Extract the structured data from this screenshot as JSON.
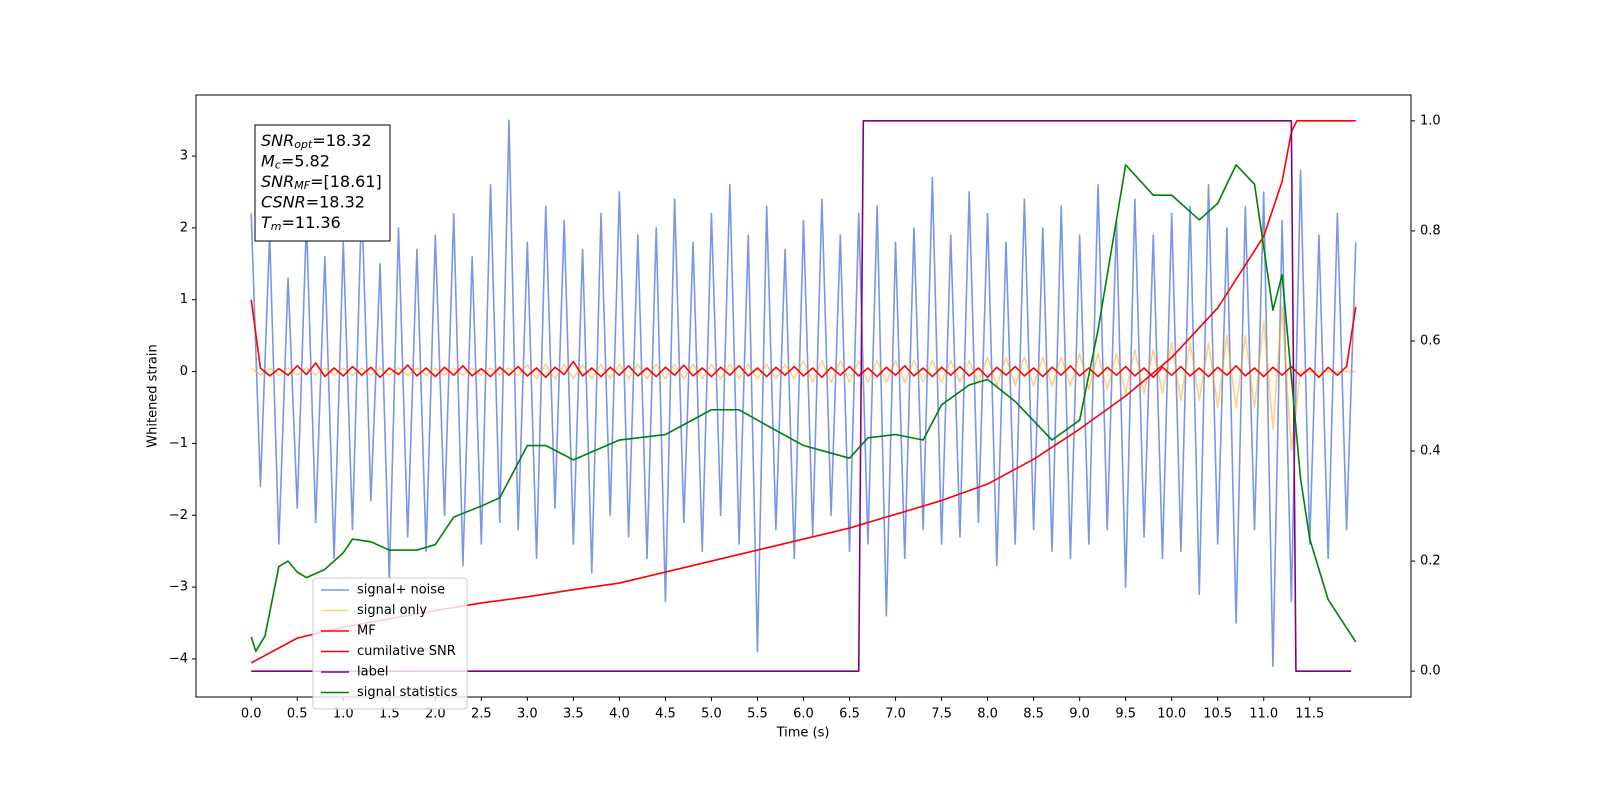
{
  "chart_data": {
    "type": "line",
    "xlabel": "Time (s)",
    "ylabel": "Whitened strain",
    "xlim": [
      -0.6,
      12.6
    ],
    "ylim": [
      -4.53,
      3.85
    ],
    "y2lim": [
      -0.047,
      1.047
    ],
    "xticks": [
      {
        "value": 0,
        "label": "0.0"
      },
      {
        "value": 0.5,
        "label": "0.5"
      },
      {
        "value": 1,
        "label": "1.0"
      },
      {
        "value": 1.5,
        "label": "1.5"
      },
      {
        "value": 2,
        "label": "2.0"
      },
      {
        "value": 2.5,
        "label": "2.5"
      },
      {
        "value": 3,
        "label": "3.0"
      },
      {
        "value": 3.5,
        "label": "3.5"
      },
      {
        "value": 4,
        "label": "4.0"
      },
      {
        "value": 4.5,
        "label": "4.5"
      },
      {
        "value": 5,
        "label": "5.0"
      },
      {
        "value": 5.5,
        "label": "5.5"
      },
      {
        "value": 6,
        "label": "6.0"
      },
      {
        "value": 6.5,
        "label": "6.5"
      },
      {
        "value": 7,
        "label": "7.0"
      },
      {
        "value": 7.5,
        "label": "7.5"
      },
      {
        "value": 8,
        "label": "8.0"
      },
      {
        "value": 8.5,
        "label": "8.5"
      },
      {
        "value": 9,
        "label": "9.0"
      },
      {
        "value": 9.5,
        "label": "9.5"
      },
      {
        "value": 10,
        "label": "10.0"
      },
      {
        "value": 10.5,
        "label": "10.5"
      },
      {
        "value": 11,
        "label": "11.0"
      },
      {
        "value": 11.5,
        "label": "11.5"
      }
    ],
    "yticks": [
      {
        "value": -4,
        "label": "−4"
      },
      {
        "value": -3,
        "label": "−3"
      },
      {
        "value": -2,
        "label": "−2"
      },
      {
        "value": -1,
        "label": "−1"
      },
      0,
      1,
      2,
      3
    ],
    "y2ticks": [
      {
        "value": 0,
        "label": "0.0"
      },
      {
        "value": 0.2,
        "label": "0.2"
      },
      {
        "value": 0.4,
        "label": "0.4"
      },
      {
        "value": 0.6,
        "label": "0.6"
      },
      {
        "value": 0.8,
        "label": "0.8"
      },
      {
        "value": 1,
        "label": "1.0"
      }
    ],
    "grid": false,
    "legend": "lower left",
    "annotation": [
      {
        "main": "SNR",
        "sub": "opt",
        "rest": "=18.32"
      },
      {
        "main": "M",
        "sub": "c",
        "rest": "=5.82"
      },
      {
        "main": "SNR",
        "sub": "MF",
        "rest": "=[18.61]"
      },
      {
        "main": "CSNR",
        "sub": null,
        "rest": "=18.32"
      },
      {
        "main": "T",
        "sub": "m",
        "rest": "=11.36"
      }
    ],
    "series": [
      {
        "name": "signal+ noise",
        "color": "#7b96e8",
        "axis": "y",
        "x": [
          0,
          0.1,
          0.2,
          0.3,
          0.4,
          0.5,
          0.6,
          0.7,
          0.8,
          0.9,
          1,
          1.1,
          1.2,
          1.3,
          1.4,
          1.5,
          1.6,
          1.7,
          1.8,
          1.9,
          2,
          2.1,
          2.2,
          2.3,
          2.4,
          2.5,
          2.6,
          2.7,
          2.8,
          2.9,
          3,
          3.1,
          3.2,
          3.3,
          3.4,
          3.5,
          3.6,
          3.7,
          3.8,
          3.9,
          4,
          4.1,
          4.2,
          4.3,
          4.4,
          4.5,
          4.6,
          4.7,
          4.8,
          4.9,
          5,
          5.1,
          5.2,
          5.3,
          5.4,
          5.5,
          5.6,
          5.7,
          5.8,
          5.9,
          6,
          6.1,
          6.2,
          6.3,
          6.4,
          6.5,
          6.6,
          6.7,
          6.8,
          6.9,
          7,
          7.1,
          7.2,
          7.3,
          7.4,
          7.5,
          7.6,
          7.7,
          7.8,
          7.9,
          8,
          8.1,
          8.2,
          8.3,
          8.4,
          8.5,
          8.6,
          8.7,
          8.8,
          8.9,
          9,
          9.1,
          9.2,
          9.3,
          9.4,
          9.5,
          9.6,
          9.7,
          9.8,
          9.9,
          10,
          10.1,
          10.2,
          10.3,
          10.4,
          10.5,
          10.6,
          10.7,
          10.8,
          10.9,
          11,
          11.1,
          11.2,
          11.3,
          11.4,
          11.5,
          11.6,
          11.7,
          11.8,
          11.9,
          12
        ],
        "values": [
          2.2,
          -1.6,
          1.9,
          -2.4,
          1.3,
          -1.9,
          2.1,
          -2.1,
          1.6,
          -2.6,
          1.8,
          -2.2,
          2.4,
          -1.8,
          1.5,
          -2.9,
          2.0,
          -2.3,
          1.7,
          -2.5,
          1.9,
          -2.0,
          2.2,
          -2.7,
          1.6,
          -2.4,
          2.6,
          -2.1,
          3.5,
          -2.2,
          1.8,
          -2.6,
          2.3,
          -1.9,
          2.1,
          -2.4,
          1.7,
          -2.8,
          2.2,
          -2.0,
          2.5,
          -2.3,
          1.9,
          -2.6,
          2.0,
          -3.2,
          2.4,
          -2.1,
          1.8,
          -2.5,
          2.2,
          -2.0,
          2.6,
          -2.4,
          1.9,
          -3.9,
          2.3,
          -2.2,
          1.7,
          -2.6,
          2.1,
          -2.3,
          2.4,
          -2.0,
          1.9,
          -2.5,
          2.2,
          -2.4,
          2.3,
          -3.4,
          1.8,
          -2.6,
          2.0,
          -2.2,
          2.7,
          -2.4,
          1.9,
          -2.3,
          2.5,
          -2.1,
          2.2,
          -2.7,
          1.8,
          -2.4,
          2.4,
          -2.2,
          2.0,
          -2.5,
          2.3,
          -2.6,
          1.9,
          -2.4,
          2.6,
          -2.2,
          2.1,
          -3.0,
          2.4,
          -2.3,
          1.9,
          -2.6,
          2.2,
          -2.5,
          2.3,
          -3.1,
          2.6,
          -2.4,
          2.0,
          -3.5,
          2.3,
          -2.2,
          2.5,
          -4.1,
          2.1,
          -3.2,
          2.8,
          -2.4,
          1.9,
          -2.6,
          2.2,
          -2.2,
          1.8
        ]
      },
      {
        "name": "signal only",
        "color": "#ffa500",
        "opacity": 0.5,
        "axis": "y",
        "x": [
          0,
          0.1,
          0.2,
          0.3,
          0.4,
          0.5,
          0.6,
          0.7,
          0.8,
          0.9,
          1,
          1.1,
          1.2,
          1.3,
          1.4,
          1.5,
          1.6,
          1.7,
          1.8,
          1.9,
          2,
          2.1,
          2.2,
          2.3,
          2.4,
          2.5,
          2.6,
          2.7,
          2.8,
          2.9,
          3,
          3.1,
          3.2,
          3.3,
          3.4,
          3.5,
          3.6,
          3.7,
          3.8,
          3.9,
          4,
          4.1,
          4.2,
          4.3,
          4.4,
          4.5,
          4.6,
          4.7,
          4.8,
          4.9,
          5,
          5.1,
          5.2,
          5.3,
          5.4,
          5.5,
          5.6,
          5.7,
          5.8,
          5.9,
          6,
          6.1,
          6.2,
          6.3,
          6.4,
          6.5,
          6.6,
          6.7,
          6.8,
          6.9,
          7,
          7.1,
          7.2,
          7.3,
          7.4,
          7.5,
          7.6,
          7.7,
          7.8,
          7.9,
          8,
          8.1,
          8.2,
          8.3,
          8.4,
          8.5,
          8.6,
          8.7,
          8.8,
          8.9,
          9,
          9.1,
          9.2,
          9.3,
          9.4,
          9.5,
          9.6,
          9.7,
          9.8,
          9.9,
          10,
          10.1,
          10.2,
          10.3,
          10.4,
          10.5,
          10.6,
          10.7,
          10.8,
          10.9,
          11,
          11.1,
          11.2,
          11.3,
          11.4,
          11.5,
          11.6,
          11.7,
          11.8,
          11.9,
          12
        ],
        "values": [
          0.05,
          -0.05,
          0.05,
          -0.05,
          0.05,
          -0.05,
          0.05,
          -0.05,
          0.05,
          -0.05,
          0.05,
          -0.05,
          0.05,
          -0.05,
          0.05,
          -0.05,
          0.05,
          -0.05,
          0.05,
          -0.05,
          0.05,
          -0.05,
          0.05,
          -0.05,
          0.05,
          -0.05,
          0.05,
          -0.05,
          0.05,
          -0.05,
          0.1,
          -0.1,
          0.1,
          -0.1,
          0.1,
          -0.1,
          0.1,
          -0.1,
          0.1,
          -0.1,
          0.1,
          -0.1,
          0.1,
          -0.1,
          0.1,
          -0.1,
          0.1,
          -0.1,
          0.1,
          -0.1,
          0.1,
          -0.1,
          0.1,
          -0.1,
          0.1,
          -0.1,
          0.1,
          -0.1,
          0.1,
          -0.1,
          0.15,
          -0.15,
          0.15,
          -0.15,
          0.15,
          -0.15,
          0.15,
          -0.15,
          0.15,
          -0.15,
          0.15,
          -0.15,
          0.15,
          -0.15,
          0.15,
          -0.15,
          0.15,
          -0.15,
          0.15,
          -0.15,
          0.2,
          -0.2,
          0.2,
          -0.2,
          0.2,
          -0.2,
          0.2,
          -0.2,
          0.2,
          -0.2,
          0.25,
          -0.25,
          0.25,
          -0.25,
          0.25,
          -0.3,
          0.3,
          -0.3,
          0.3,
          -0.3,
          0.4,
          -0.4,
          0.4,
          -0.4,
          0.4,
          -0.5,
          0.5,
          -0.5,
          0.5,
          -0.5,
          0.7,
          -0.8,
          0.9,
          -1.1,
          0,
          0,
          0,
          0,
          0,
          0,
          0
        ]
      },
      {
        "name": "MF",
        "color": "#ff0000",
        "axis": "y",
        "x": [
          0,
          0.1,
          0.2,
          0.3,
          0.4,
          0.5,
          0.6,
          0.7,
          0.8,
          0.9,
          1,
          1.1,
          1.2,
          1.3,
          1.4,
          1.5,
          1.6,
          1.7,
          1.8,
          1.9,
          2,
          2.1,
          2.2,
          2.3,
          2.4,
          2.5,
          2.6,
          2.7,
          2.8,
          2.9,
          3,
          3.1,
          3.2,
          3.3,
          3.4,
          3.5,
          3.6,
          3.7,
          3.8,
          3.9,
          4,
          4.1,
          4.2,
          4.3,
          4.4,
          4.5,
          4.6,
          4.7,
          4.8,
          4.9,
          5,
          5.1,
          5.2,
          5.3,
          5.4,
          5.5,
          5.6,
          5.7,
          5.8,
          5.9,
          6,
          6.1,
          6.2,
          6.3,
          6.4,
          6.5,
          6.6,
          6.7,
          6.8,
          6.9,
          7,
          7.1,
          7.2,
          7.3,
          7.4,
          7.5,
          7.6,
          7.7,
          7.8,
          7.9,
          8,
          8.1,
          8.2,
          8.3,
          8.4,
          8.5,
          8.6,
          8.7,
          8.8,
          8.9,
          9,
          9.1,
          9.2,
          9.3,
          9.4,
          9.5,
          9.6,
          9.7,
          9.8,
          9.9,
          10,
          10.1,
          10.2,
          10.3,
          10.4,
          10.5,
          10.6,
          10.7,
          10.8,
          10.9,
          11,
          11.1,
          11.2,
          11.3,
          11.4,
          11.5,
          11.6,
          11.7,
          11.8,
          11.9,
          12
        ],
        "values": [
          1.0,
          0.05,
          -0.06,
          0.04,
          -0.05,
          0.08,
          -0.04,
          0.12,
          -0.07,
          0.05,
          -0.06,
          0.07,
          -0.05,
          0.06,
          -0.08,
          0.05,
          -0.04,
          0.09,
          -0.06,
          0.05,
          -0.07,
          0.06,
          -0.05,
          0.08,
          -0.06,
          0.04,
          -0.07,
          0.06,
          -0.05,
          0.07,
          -0.06,
          0.05,
          -0.08,
          0.06,
          -0.04,
          0.14,
          -0.06,
          0.05,
          -0.07,
          0.06,
          -0.05,
          0.08,
          -0.06,
          0.05,
          -0.07,
          0.06,
          -0.05,
          0.09,
          -0.06,
          0.05,
          -0.07,
          0.06,
          -0.05,
          0.08,
          -0.06,
          0.05,
          -0.07,
          0.06,
          -0.05,
          0.07,
          -0.06,
          0.05,
          -0.08,
          0.06,
          -0.05,
          0.07,
          -0.06,
          0.05,
          -0.07,
          0.06,
          -0.05,
          0.08,
          -0.06,
          0.05,
          -0.07,
          0.06,
          -0.05,
          0.07,
          -0.06,
          0.05,
          -0.08,
          0.06,
          -0.05,
          0.07,
          -0.06,
          0.05,
          -0.07,
          0.06,
          -0.05,
          0.08,
          -0.06,
          0.05,
          -0.07,
          0.06,
          -0.05,
          0.07,
          -0.06,
          0.05,
          -0.08,
          0.06,
          -0.05,
          0.07,
          -0.06,
          0.05,
          -0.07,
          0.06,
          -0.05,
          0.08,
          -0.06,
          0.05,
          -0.07,
          0.06,
          -0.05,
          0.07,
          -0.06,
          0.05,
          -0.08,
          0.06,
          -0.05,
          0.07,
          0.9
        ]
      },
      {
        "name": "cumilative SNR",
        "color": "#ff0000",
        "axis": "y2",
        "x": [
          0,
          0.5,
          1,
          1.5,
          2,
          2.5,
          3,
          3.5,
          4,
          4.5,
          5,
          5.5,
          6,
          6.5,
          7,
          7.5,
          8,
          8.5,
          9,
          9.5,
          10,
          10.5,
          11,
          11.2,
          11.3,
          11.36,
          12
        ],
        "values": [
          0.015,
          0.06,
          0.08,
          0.095,
          0.11,
          0.124,
          0.135,
          0.148,
          0.16,
          0.18,
          0.2,
          0.22,
          0.24,
          0.26,
          0.285,
          0.31,
          0.34,
          0.385,
          0.44,
          0.5,
          0.57,
          0.66,
          0.79,
          0.89,
          0.98,
          1.0,
          1.0
        ]
      },
      {
        "name": "label",
        "color": "#800080",
        "axis": "y2",
        "x": [
          0,
          6.6,
          6.65,
          11.3,
          11.35,
          11.95
        ],
        "values": [
          0,
          0,
          1,
          1,
          0,
          0
        ]
      },
      {
        "name": "signal statistics",
        "color": "#008000",
        "axis": "y2",
        "x": [
          0,
          0.05,
          0.15,
          0.3,
          0.4,
          0.5,
          0.6,
          0.8,
          1,
          1.1,
          1.3,
          1.5,
          1.8,
          2,
          2.2,
          2.5,
          2.7,
          3,
          3.2,
          3.5,
          4,
          4.5,
          5,
          5.3,
          5.5,
          6,
          6.5,
          6.7,
          7,
          7.3,
          7.5,
          7.8,
          8,
          8.3,
          8.7,
          9,
          9.2,
          9.5,
          9.8,
          10,
          10.3,
          10.5,
          10.7,
          10.9,
          11.1,
          11.2,
          11.4,
          11.5,
          11.7,
          12
        ],
        "values": [
          0.062,
          0.036,
          0.064,
          0.19,
          0.2,
          0.18,
          0.17,
          0.185,
          0.215,
          0.24,
          0.235,
          0.22,
          0.22,
          0.23,
          0.28,
          0.3,
          0.315,
          0.41,
          0.41,
          0.384,
          0.42,
          0.43,
          0.475,
          0.475,
          0.456,
          0.41,
          0.387,
          0.424,
          0.43,
          0.42,
          0.484,
          0.52,
          0.53,
          0.49,
          0.42,
          0.456,
          0.62,
          0.92,
          0.865,
          0.865,
          0.82,
          0.85,
          0.92,
          0.885,
          0.656,
          0.72,
          0.35,
          0.24,
          0.13,
          0.053
        ]
      }
    ]
  }
}
